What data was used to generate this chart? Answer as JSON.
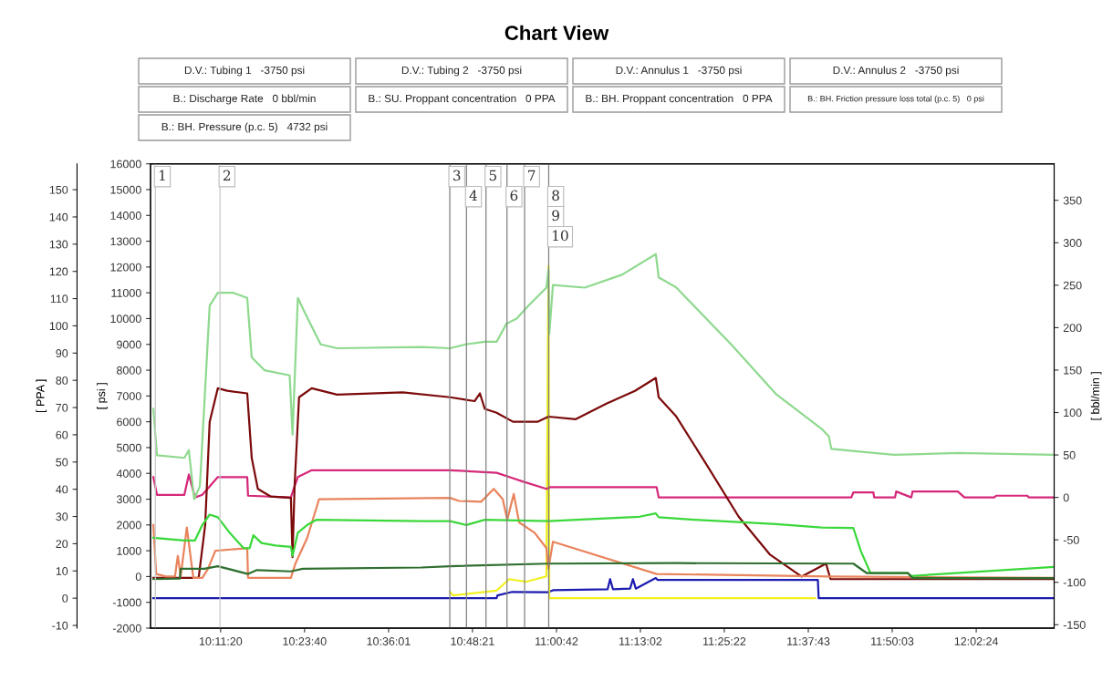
{
  "chart_data": {
    "type": "line",
    "title": "Chart View",
    "ylabel": "[ psi ]",
    "y2label": "[ bbl/min ]",
    "y3label": "[ PPA ]",
    "annotations": [
      "D.V.: Tubing 1   -3750 psi",
      "D.V.: Tubing 2   -3750 psi",
      "D.V.: Annulus 1   -3750 psi",
      "D.V.: Annulus 2   -3750 psi",
      "B.: Discharge Rate   0 bbl/min",
      "B.: SU. Proppant concentration   0 PPA",
      "B.: BH. Proppant concentration   0 PPA",
      "B.: BH. Friction pressure loss total (p.c. 5)   0 psi",
      "B.: BH. Pressure (p.c. 5)   4732 psi",
      {
        "text": "1",
        "x": 10.029
      },
      {
        "text": "2",
        "x": 10.1873
      },
      {
        "text": "3",
        "x": 10.7503
      },
      {
        "text": "4",
        "x": 10.7911
      },
      {
        "text": "5",
        "x": 10.8389
      },
      {
        "text": "6",
        "x": 10.8904
      },
      {
        "text": "7",
        "x": 10.9335
      },
      {
        "text": "8",
        "x": 10.9926
      },
      {
        "text": "9",
        "x": 10.9926
      },
      {
        "text": "10",
        "x": 10.9926
      }
    ],
    "xlim": [
      10.0171,
      12.2309
    ],
    "xticks": [
      {
        "value": 10.18889,
        "label": "10:11:20"
      },
      {
        "value": 10.39444,
        "label": "10:23:40"
      },
      {
        "value": 10.60028,
        "label": "10:36:01"
      },
      {
        "value": 10.80583,
        "label": "10:48:21"
      },
      {
        "value": 11.01167,
        "label": "11:00:42"
      },
      {
        "value": 11.21722,
        "label": "11:13:02"
      },
      {
        "value": 11.42278,
        "label": "11:25:22"
      },
      {
        "value": 11.62861,
        "label": "11:37:43"
      },
      {
        "value": 11.83417,
        "label": "11:50:03"
      },
      {
        "value": 12.04,
        "label": "12:02:24"
      }
    ],
    "ylim": [
      -2000,
      16000
    ],
    "yticks": [
      -2000,
      -1000,
      0,
      1000,
      2000,
      3000,
      4000,
      5000,
      6000,
      7000,
      8000,
      9000,
      10000,
      11000,
      12000,
      13000,
      14000,
      15000,
      16000
    ],
    "y2lim": [
      -154,
      393
    ],
    "y2ticks": [
      -150,
      -100,
      -50,
      0,
      50,
      100,
      150,
      200,
      250,
      300,
      350
    ],
    "y3lim": [
      -11,
      159.5
    ],
    "y3ticks": [
      -10,
      0,
      10,
      20,
      30,
      40,
      50,
      60,
      70,
      80,
      90,
      100,
      110,
      120,
      130,
      140,
      150
    ],
    "grid": false,
    "legend": false,
    "line_style": "solid",
    "marker": "none",
    "ref_lines": [
      {
        "axis": "x",
        "value": 10.029,
        "color": "#c8c8c8"
      },
      {
        "axis": "x",
        "value": 10.1873,
        "color": "#c8c8c8"
      },
      {
        "axis": "x",
        "value": 10.7503,
        "color": "#808080"
      },
      {
        "axis": "x",
        "value": 10.7911,
        "color": "#808080"
      },
      {
        "axis": "x",
        "value": 10.8389,
        "color": "#808080"
      },
      {
        "axis": "x",
        "value": 10.8904,
        "color": "#808080"
      },
      {
        "axis": "x",
        "value": 10.9335,
        "color": "#808080"
      },
      {
        "axis": "x",
        "value": 10.9926,
        "color": "#808080"
      }
    ],
    "series": [
      {
        "color": "#8fd98f",
        "x": [
          10.024,
          10.033,
          10.1,
          10.111,
          10.124,
          10.138,
          10.162,
          10.182,
          10.22,
          10.254,
          10.265,
          10.296,
          10.358,
          10.365,
          10.378,
          10.396,
          10.434,
          10.474,
          10.68,
          10.751,
          10.789,
          10.836,
          10.865,
          10.889,
          10.914,
          10.943,
          10.987,
          10.992,
          10.994,
          11.003,
          11.081,
          11.172,
          11.255,
          11.262,
          11.304,
          11.438,
          11.549,
          11.661,
          11.679,
          11.685,
          11.772,
          11.839,
          11.995,
          12.228
        ],
        "values": [
          6500,
          4700,
          4600,
          4900,
          3000,
          3500,
          10500,
          11000,
          11000,
          10800,
          8500,
          8000,
          7800,
          5500,
          10800,
          10200,
          9000,
          8850,
          8900,
          8850,
          9000,
          9100,
          9100,
          9800,
          10000,
          10500,
          11200,
          11900,
          9400,
          11300,
          11200,
          11700,
          12500,
          11600,
          11220,
          9030,
          7080,
          5730,
          5430,
          4950,
          4820,
          4720,
          4790,
          4720
        ]
      },
      {
        "color": "#7b0a0a",
        "x": [
          10.024,
          10.135,
          10.151,
          10.162,
          10.182,
          10.205,
          10.254,
          10.265,
          10.28,
          10.312,
          10.361,
          10.365,
          10.37,
          10.381,
          10.412,
          10.474,
          10.635,
          10.751,
          10.811,
          10.824,
          10.836,
          10.865,
          10.905,
          10.965,
          10.992,
          11.059,
          11.134,
          11.204,
          11.255,
          11.262,
          11.304,
          11.382,
          11.458,
          11.534,
          11.612,
          11.672,
          11.683,
          12.228
        ],
        "values": [
          -50,
          -50,
          2000,
          6000,
          7300,
          7200,
          7100,
          4600,
          3400,
          3100,
          3050,
          750,
          3500,
          6950,
          7300,
          7050,
          7140,
          6950,
          6800,
          7100,
          6500,
          6350,
          6000,
          6000,
          6200,
          6100,
          6700,
          7200,
          7700,
          6950,
          6230,
          4270,
          2320,
          860,
          0,
          500,
          -100,
          -100
        ]
      },
      {
        "color": "#d6287a",
        "axis": "y2",
        "x": [
          10.024,
          10.033,
          10.1,
          10.111,
          10.126,
          10.144,
          10.182,
          10.254,
          10.256,
          10.361,
          10.367,
          10.378,
          10.412,
          10.751,
          10.865,
          10.903,
          10.927,
          10.987,
          10.996,
          11.257,
          11.262,
          11.734,
          11.739,
          11.788,
          11.79,
          11.841,
          11.844,
          11.881,
          11.884,
          11.995,
          12.011,
          12.084,
          12.089,
          12.165,
          12.169,
          12.228
        ],
        "values": [
          24,
          3,
          3,
          27,
          0,
          3,
          24,
          24,
          2,
          0,
          9,
          24,
          32,
          32,
          29,
          23,
          19,
          10,
          12,
          12,
          0,
          0,
          6,
          6,
          0,
          0,
          7,
          0,
          7,
          7,
          0,
          0,
          2,
          2,
          0,
          0
        ]
      },
      {
        "color": "#e9845c",
        "x": [
          10.024,
          10.031,
          10.055,
          10.077,
          10.084,
          10.091,
          10.106,
          10.122,
          10.144,
          10.158,
          10.176,
          10.254,
          10.256,
          10.361,
          10.372,
          10.401,
          10.43,
          10.751,
          10.773,
          10.827,
          10.858,
          10.88,
          10.891,
          10.907,
          10.92,
          10.958,
          10.987,
          10.992,
          11.003,
          11.257,
          11.683,
          12.228
        ],
        "values": [
          2000,
          100,
          0,
          0,
          800,
          0,
          1900,
          -50,
          -50,
          300,
          1000,
          1100,
          -50,
          -50,
          500,
          1500,
          3000,
          3050,
          2930,
          2900,
          3400,
          3000,
          2200,
          3200,
          2100,
          1700,
          1100,
          300,
          1350,
          100,
          0,
          -50
        ]
      },
      {
        "color": "#3ad83a",
        "x": [
          10.024,
          10.1,
          10.126,
          10.144,
          10.162,
          10.182,
          10.211,
          10.245,
          10.26,
          10.269,
          10.289,
          10.323,
          10.361,
          10.365,
          10.378,
          10.401,
          10.423,
          10.68,
          10.751,
          10.791,
          10.836,
          10.992,
          11.215,
          11.255,
          11.262,
          11.349,
          11.549,
          11.661,
          11.734,
          11.739,
          11.757,
          11.781,
          11.873,
          11.879,
          12.228
        ],
        "values": [
          1500,
          1400,
          1400,
          2000,
          2400,
          2300,
          1700,
          1100,
          1100,
          1600,
          1300,
          1200,
          1150,
          800,
          1700,
          2000,
          2200,
          2150,
          2150,
          2000,
          2200,
          2150,
          2320,
          2450,
          2300,
          2200,
          2030,
          1900,
          1880,
          1880,
          1000,
          130,
          130,
          20,
          370
        ]
      },
      {
        "color": "#2f6f2f",
        "x": [
          10.024,
          10.089,
          10.091,
          10.131,
          10.149,
          10.182,
          10.256,
          10.278,
          10.361,
          10.39,
          10.68,
          10.751,
          10.992,
          11.304,
          11.739,
          11.772,
          11.873,
          11.884,
          12.228
        ],
        "values": [
          -100,
          -80,
          300,
          300,
          300,
          400,
          100,
          250,
          200,
          300,
          350,
          400,
          500,
          520,
          500,
          130,
          130,
          -60,
          -60
        ]
      },
      {
        "color": "#1c1cb0",
        "axis": "y3",
        "x": [
          10.024,
          10.865,
          10.867,
          10.903,
          10.992,
          11.003,
          11.137,
          11.143,
          11.15,
          11.192,
          11.199,
          11.206,
          11.237,
          11.255,
          11.259,
          11.652,
          11.654,
          12.228
        ],
        "values": [
          0,
          0,
          1,
          2.3,
          2.2,
          2.9,
          3.3,
          7,
          3.3,
          3.5,
          7,
          3.5,
          6,
          7.4,
          6.7,
          6.7,
          0,
          0
        ]
      },
      {
        "color": "#f0f020",
        "axis": "y3",
        "x": [
          10.751,
          10.758,
          10.865,
          10.896,
          10.936,
          10.987,
          10.992,
          10.994,
          11.645
        ],
        "values": [
          2.3,
          1,
          2.8,
          7,
          6,
          8,
          122,
          0,
          0
        ]
      }
    ]
  }
}
